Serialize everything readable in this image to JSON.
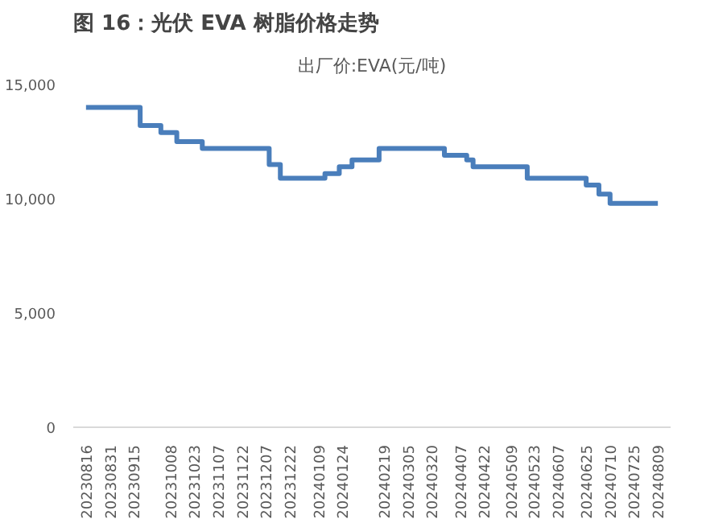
{
  "chart_data": {
    "type": "step",
    "title": "图 16：光伏 EVA 树脂价格走势",
    "subtitle": "出厂价:EVA(元/吨)",
    "x": [
      "2023-08-16",
      "2023-09-19",
      "2023-10-02",
      "2023-10-12",
      "2023-10-28",
      "2023-12-09",
      "2023-12-16",
      "2024-01-13",
      "2024-01-22",
      "2024-01-30",
      "2024-02-16",
      "2024-03-28",
      "2024-04-11",
      "2024-04-15",
      "2024-05-19",
      "2024-06-25",
      "2024-07-03",
      "2024-07-10",
      "2024-08-09"
    ],
    "series": [
      {
        "color": "#4a7ebb",
        "values": [
          14000,
          13200,
          12900,
          12500,
          12200,
          11500,
          10900,
          11100,
          11400,
          11700,
          12200,
          11900,
          11700,
          11400,
          10900,
          10600,
          10200,
          9800,
          9800
        ]
      }
    ],
    "xlim": [
      "2023-08-08",
      "2024-08-17"
    ],
    "xticks": [
      {
        "value": "2023-08-16",
        "label": "20230816"
      },
      {
        "value": "2023-08-31",
        "label": "20230831"
      },
      {
        "value": "2023-09-15",
        "label": "20230915"
      },
      {
        "value": "2023-10-08",
        "label": "20231008"
      },
      {
        "value": "2023-10-23",
        "label": "20231023"
      },
      {
        "value": "2023-11-07",
        "label": "20231107"
      },
      {
        "value": "2023-11-22",
        "label": "20231122"
      },
      {
        "value": "2023-12-07",
        "label": "20231207"
      },
      {
        "value": "2023-12-22",
        "label": "20231222"
      },
      {
        "value": "2024-01-09",
        "label": "20240109"
      },
      {
        "value": "2024-01-24",
        "label": "20240124"
      },
      {
        "value": "2024-02-19",
        "label": "20240219"
      },
      {
        "value": "2024-03-05",
        "label": "20240305"
      },
      {
        "value": "2024-03-20",
        "label": "20240320"
      },
      {
        "value": "2024-04-07",
        "label": "20240407"
      },
      {
        "value": "2024-04-22",
        "label": "20240422"
      },
      {
        "value": "2024-05-09",
        "label": "20240509"
      },
      {
        "value": "2024-05-23",
        "label": "20240523"
      },
      {
        "value": "2024-06-07",
        "label": "20240607"
      },
      {
        "value": "2024-06-25",
        "label": "20240625"
      },
      {
        "value": "2024-07-10",
        "label": "20240710"
      },
      {
        "value": "2024-07-25",
        "label": "20240725"
      },
      {
        "value": "2024-08-09",
        "label": "20240809"
      }
    ],
    "ylim": [
      0,
      15000
    ],
    "yticks": [
      0,
      {
        "value": 5000,
        "label": "5,000"
      },
      {
        "value": 10000,
        "label": "10,000"
      },
      {
        "value": 15000,
        "label": "15,000"
      }
    ],
    "grid": false
  }
}
